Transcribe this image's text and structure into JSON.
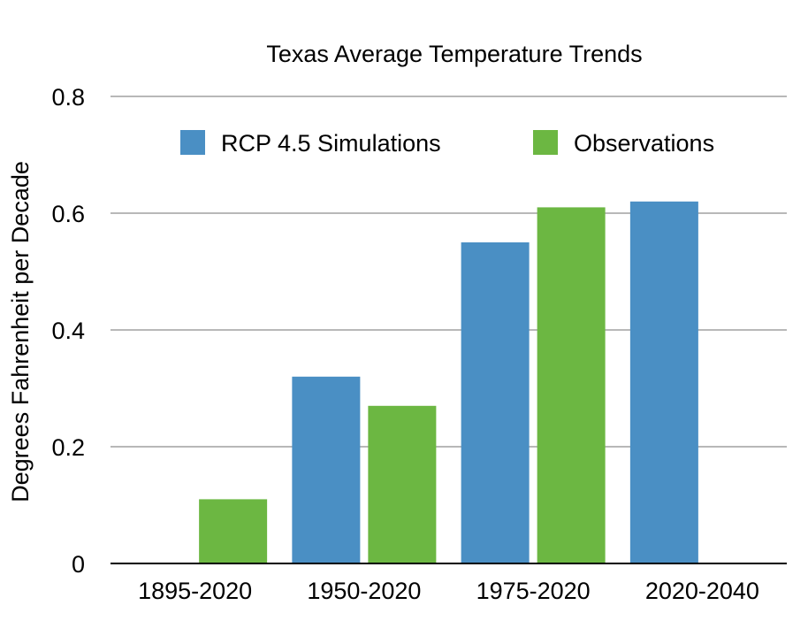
{
  "chart_data": {
    "type": "bar",
    "title": "Texas Average Temperature Trends",
    "xlabel": "",
    "ylabel": "Degrees Fahrenheit per Decade",
    "categories": [
      "1895-2020",
      "1950-2020",
      "1975-2020",
      "2020-2040"
    ],
    "series": [
      {
        "name": "RCP 4.5 Simulations",
        "color": "#4a8fc4",
        "values": [
          null,
          0.32,
          0.55,
          0.62
        ]
      },
      {
        "name": "Observations",
        "color": "#6cb742",
        "values": [
          0.11,
          0.27,
          0.61,
          null
        ]
      }
    ],
    "ylim": [
      0,
      0.8
    ],
    "yticks": [
      "0",
      "0.2",
      "0.4",
      "0.6",
      "0.8"
    ],
    "grid": true,
    "legend_position": "top-center"
  }
}
